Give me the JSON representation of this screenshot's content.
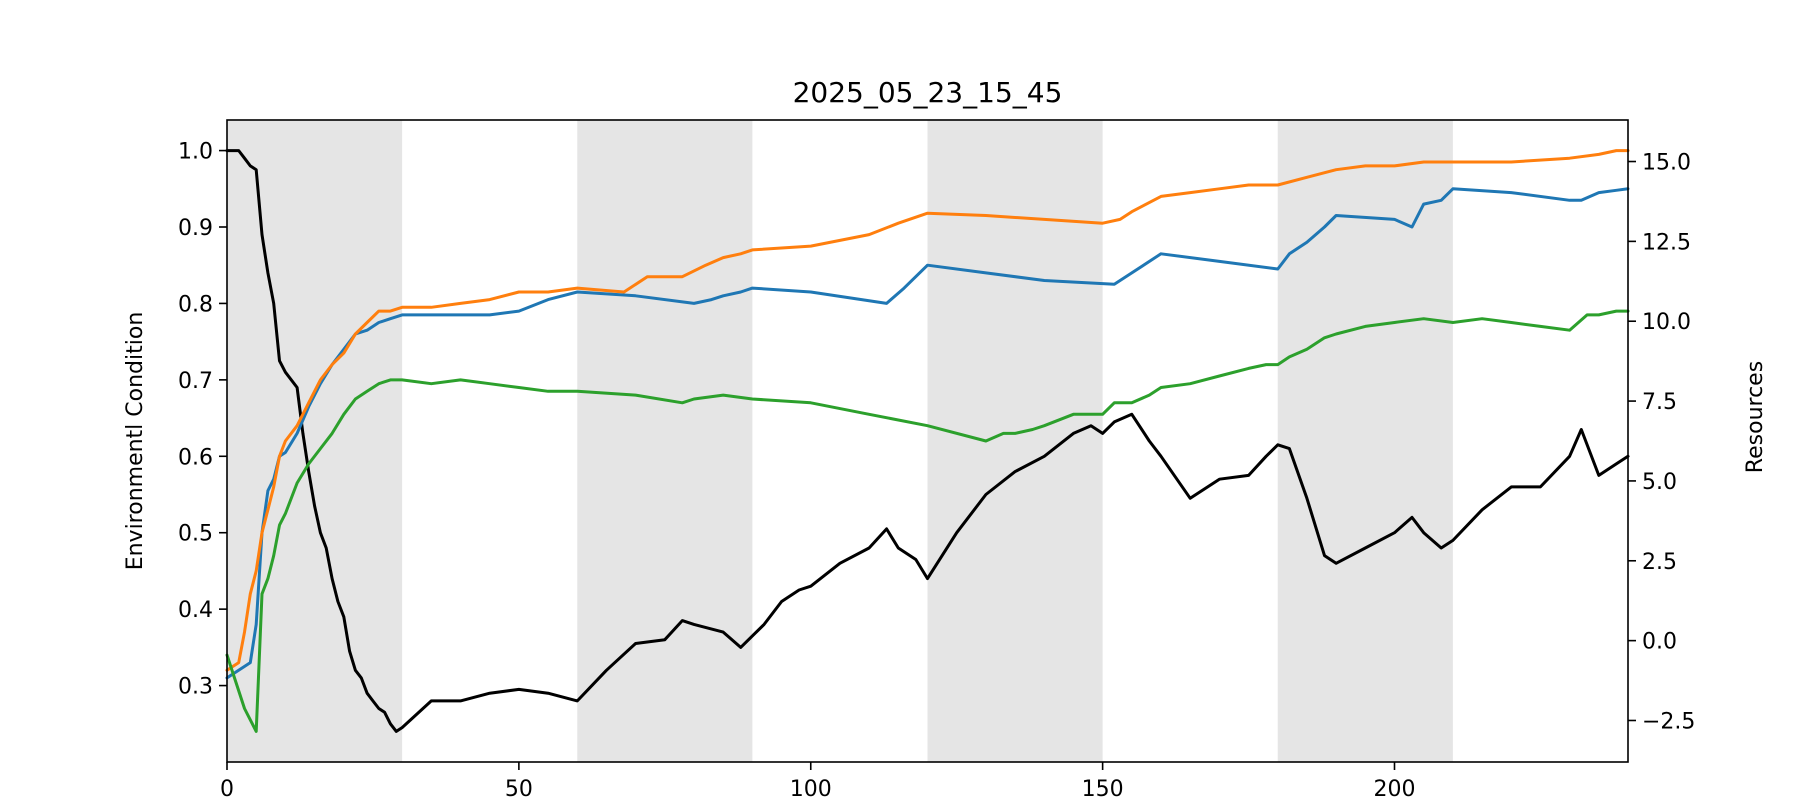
{
  "chart_data": {
    "type": "line",
    "title": "2025_05_23_15_45",
    "xlabel": "",
    "ylabel": "Environmentl Condition",
    "y2label": "Resources",
    "xlim": [
      0,
      240
    ],
    "ylim": [
      0.2,
      1.04
    ],
    "y2lim": [
      -3.8,
      16.3
    ],
    "xticks": [
      0,
      50,
      100,
      150,
      200
    ],
    "yticks": [
      0.3,
      0.4,
      0.5,
      0.6,
      0.7,
      0.8,
      0.9,
      1.0
    ],
    "y2ticks": [
      -2.5,
      0.0,
      2.5,
      5.0,
      7.5,
      10.0,
      12.5,
      15.0
    ],
    "shaded_bands": [
      [
        0,
        30
      ],
      [
        60,
        90
      ],
      [
        120,
        150
      ],
      [
        180,
        210
      ]
    ],
    "band_color": "#e5e5e5",
    "grid": false,
    "series": [
      {
        "axis": "left",
        "color": "#000000",
        "x": [
          0,
          2,
          3,
          4,
          5,
          6,
          7,
          8,
          9,
          10,
          12,
          13,
          14,
          15,
          16,
          17,
          18,
          19,
          20,
          21,
          22,
          23,
          24,
          25,
          26,
          27,
          28,
          29,
          30,
          35,
          40,
          45,
          50,
          55,
          60,
          65,
          70,
          75,
          78,
          80,
          85,
          88,
          92,
          95,
          98,
          100,
          105,
          110,
          113,
          115,
          118,
          120,
          125,
          130,
          135,
          140,
          145,
          148,
          150,
          152,
          155,
          158,
          160,
          165,
          170,
          175,
          178,
          180,
          182,
          185,
          188,
          190,
          195,
          200,
          203,
          205,
          208,
          210,
          215,
          220,
          225,
          230,
          232,
          235,
          238,
          240
        ],
        "y": [
          1.0,
          1.0,
          0.99,
          0.98,
          0.975,
          0.89,
          0.84,
          0.8,
          0.725,
          0.71,
          0.69,
          0.63,
          0.58,
          0.535,
          0.5,
          0.48,
          0.44,
          0.41,
          0.39,
          0.345,
          0.32,
          0.31,
          0.29,
          0.28,
          0.27,
          0.265,
          0.25,
          0.24,
          0.245,
          0.28,
          0.28,
          0.29,
          0.295,
          0.29,
          0.28,
          0.32,
          0.355,
          0.36,
          0.385,
          0.38,
          0.37,
          0.35,
          0.38,
          0.41,
          0.425,
          0.43,
          0.46,
          0.48,
          0.505,
          0.48,
          0.465,
          0.44,
          0.5,
          0.55,
          0.58,
          0.6,
          0.63,
          0.64,
          0.63,
          0.645,
          0.655,
          0.62,
          0.6,
          0.545,
          0.57,
          0.575,
          0.6,
          0.615,
          0.61,
          0.545,
          0.47,
          0.46,
          0.48,
          0.5,
          0.52,
          0.5,
          0.48,
          0.49,
          0.53,
          0.56,
          0.56,
          0.6,
          0.635,
          0.575,
          0.59,
          0.6
        ]
      },
      {
        "axis": "left",
        "color": "#1f77b4",
        "x": [
          0,
          4,
          5,
          6,
          7,
          8,
          9,
          10,
          12,
          14,
          16,
          18,
          20,
          22,
          24,
          26,
          28,
          30,
          40,
          45,
          50,
          55,
          60,
          70,
          80,
          83,
          85,
          88,
          90,
          100,
          113,
          116,
          120,
          130,
          140,
          152,
          155,
          160,
          170,
          180,
          182,
          185,
          188,
          190,
          200,
          203,
          205,
          208,
          210,
          220,
          230,
          232,
          235,
          238,
          240
        ],
        "y": [
          0.31,
          0.33,
          0.38,
          0.5,
          0.555,
          0.57,
          0.6,
          0.605,
          0.63,
          0.665,
          0.695,
          0.72,
          0.74,
          0.76,
          0.765,
          0.775,
          0.78,
          0.785,
          0.785,
          0.785,
          0.79,
          0.805,
          0.815,
          0.81,
          0.8,
          0.805,
          0.81,
          0.815,
          0.82,
          0.815,
          0.8,
          0.82,
          0.85,
          0.84,
          0.83,
          0.825,
          0.84,
          0.865,
          0.855,
          0.845,
          0.865,
          0.88,
          0.9,
          0.915,
          0.91,
          0.9,
          0.93,
          0.935,
          0.95,
          0.945,
          0.935,
          0.935,
          0.945,
          0.948,
          0.95
        ]
      },
      {
        "axis": "left",
        "color": "#ff7f0e",
        "x": [
          0,
          2,
          3,
          4,
          5,
          6,
          7,
          8,
          9,
          10,
          12,
          14,
          16,
          18,
          20,
          22,
          24,
          26,
          28,
          30,
          35,
          40,
          45,
          50,
          55,
          60,
          68,
          72,
          78,
          82,
          85,
          88,
          90,
          100,
          110,
          115,
          120,
          130,
          140,
          150,
          153,
          155,
          160,
          165,
          170,
          175,
          180,
          185,
          190,
          195,
          200,
          205,
          210,
          220,
          230,
          235,
          238,
          240
        ],
        "y": [
          0.32,
          0.33,
          0.37,
          0.42,
          0.45,
          0.5,
          0.53,
          0.56,
          0.6,
          0.62,
          0.64,
          0.67,
          0.7,
          0.72,
          0.735,
          0.76,
          0.775,
          0.79,
          0.79,
          0.795,
          0.795,
          0.8,
          0.805,
          0.815,
          0.815,
          0.82,
          0.815,
          0.835,
          0.835,
          0.85,
          0.86,
          0.865,
          0.87,
          0.875,
          0.89,
          0.905,
          0.918,
          0.915,
          0.91,
          0.905,
          0.91,
          0.92,
          0.94,
          0.945,
          0.95,
          0.955,
          0.955,
          0.965,
          0.975,
          0.98,
          0.98,
          0.985,
          0.985,
          0.985,
          0.99,
          0.995,
          1.0,
          1.0
        ]
      },
      {
        "axis": "left",
        "color": "#2ca02c",
        "x": [
          0,
          3,
          5,
          6,
          7,
          8,
          9,
          10,
          12,
          14,
          16,
          18,
          20,
          22,
          24,
          26,
          28,
          30,
          35,
          40,
          45,
          50,
          55,
          60,
          70,
          78,
          80,
          85,
          90,
          100,
          110,
          120,
          130,
          133,
          135,
          138,
          140,
          145,
          150,
          152,
          155,
          158,
          160,
          165,
          170,
          175,
          178,
          180,
          182,
          185,
          188,
          190,
          195,
          200,
          205,
          210,
          215,
          220,
          225,
          230,
          233,
          235,
          238,
          240
        ],
        "y": [
          0.34,
          0.27,
          0.24,
          0.42,
          0.44,
          0.47,
          0.51,
          0.525,
          0.565,
          0.59,
          0.61,
          0.63,
          0.655,
          0.675,
          0.685,
          0.695,
          0.7,
          0.7,
          0.695,
          0.7,
          0.695,
          0.69,
          0.685,
          0.685,
          0.68,
          0.67,
          0.675,
          0.68,
          0.675,
          0.67,
          0.655,
          0.64,
          0.62,
          0.63,
          0.63,
          0.635,
          0.64,
          0.655,
          0.655,
          0.67,
          0.67,
          0.68,
          0.69,
          0.695,
          0.705,
          0.715,
          0.72,
          0.72,
          0.73,
          0.74,
          0.755,
          0.76,
          0.77,
          0.775,
          0.78,
          0.775,
          0.78,
          0.775,
          0.77,
          0.765,
          0.785,
          0.785,
          0.79,
          0.79
        ]
      }
    ]
  }
}
